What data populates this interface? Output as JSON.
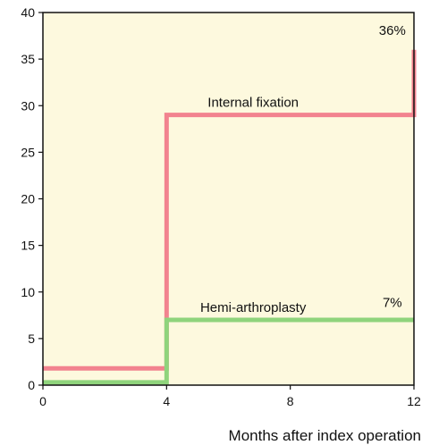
{
  "chart_data": {
    "type": "line",
    "title": "",
    "xlabel": "Months after index operation",
    "ylabel": "",
    "xlim": [
      0,
      12
    ],
    "ylim": [
      0,
      40
    ],
    "x_ticks": [
      "0",
      "4",
      "8",
      "12"
    ],
    "y_ticks": [
      "0",
      "5",
      "10",
      "15",
      "20",
      "25",
      "30",
      "35",
      "40"
    ],
    "grid": false,
    "step": true,
    "background_color": "#fdf9de",
    "series": [
      {
        "name": "Internal fixation",
        "color": "#f2838f",
        "x": [
          0,
          4,
          4,
          12,
          12
        ],
        "y": [
          1.8,
          1.8,
          29,
          29,
          36
        ]
      },
      {
        "name": "Hemi-arthroplasty",
        "color": "#8fd47c",
        "x": [
          0,
          4,
          4,
          12
        ],
        "y": [
          0.3,
          0.3,
          7,
          7
        ]
      }
    ],
    "annotations": [
      {
        "text": "36%",
        "x": 11.3,
        "y": 37.6
      },
      {
        "text": "7%",
        "x": 11.3,
        "y": 8.4
      }
    ]
  }
}
